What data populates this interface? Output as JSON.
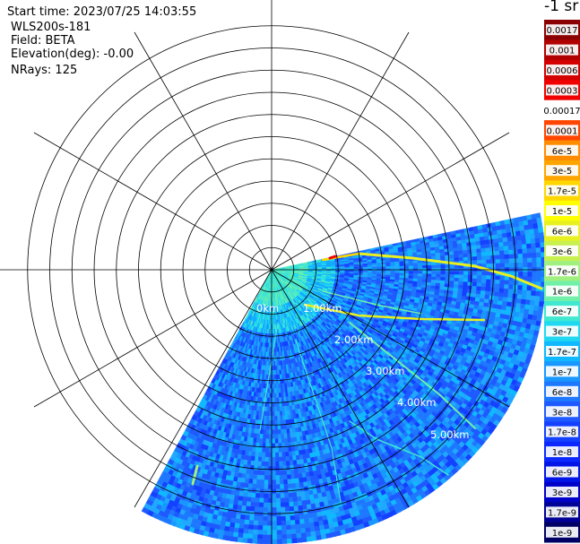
{
  "header": {
    "start_time": "Start time: 2023/07/25 14:03:55",
    "instrument": "WLS200s-181",
    "field": "Field: BETA",
    "elevation": "Elevation(deg): -0.00",
    "nrays": "NRays: 125"
  },
  "chart_data": {
    "type": "heatmap",
    "projection": "polar",
    "azimuth_sector_deg": [
      78,
      208
    ],
    "max_range_km": 5.7,
    "range_ring_labels": [
      "0km",
      "1.00km",
      "2.00km",
      "3.00km",
      "4.00km",
      "5.00km"
    ],
    "range_rings_km": [
      0.5,
      1,
      1.5,
      2,
      2.5,
      3,
      3.5,
      4,
      4.5,
      5,
      5.5
    ],
    "spokes_deg": [
      0,
      30,
      60,
      90,
      120,
      150,
      180,
      210,
      240,
      270,
      300,
      330
    ],
    "colorbar": {
      "unit": "-1 sr",
      "tick_labels": [
        "0.0017",
        "0.001",
        "0.0006",
        "0.0003",
        "0.00017",
        "0.0001",
        "6e-5",
        "3e-5",
        "1.7e-5",
        "1e-5",
        "6e-6",
        "3e-6",
        "1.7e-6",
        "1e-6",
        "6e-7",
        "3e-7",
        "1.7e-7",
        "1e-7",
        "6e-8",
        "3e-8",
        "1.7e-8",
        "1e-8",
        "6e-9",
        "3e-9",
        "1.7e-9",
        "1e-9"
      ],
      "colors": [
        "#8b0000",
        "#b00000",
        "#d40000",
        "#f00000",
        "#ffffff",
        "#ff4500",
        "#ff8c00",
        "#ffa500",
        "#ffd700",
        "#ffff00",
        "#e8f020",
        "#c8f050",
        "#a0f080",
        "#70f0a8",
        "#40e8d0",
        "#20d8f0",
        "#10b8ff",
        "#1898ff",
        "#1e78ff",
        "#1e5aff",
        "#1440ff",
        "#0a28ff",
        "#0014e6",
        "#0000c8",
        "#000096",
        "#000064"
      ]
    }
  }
}
